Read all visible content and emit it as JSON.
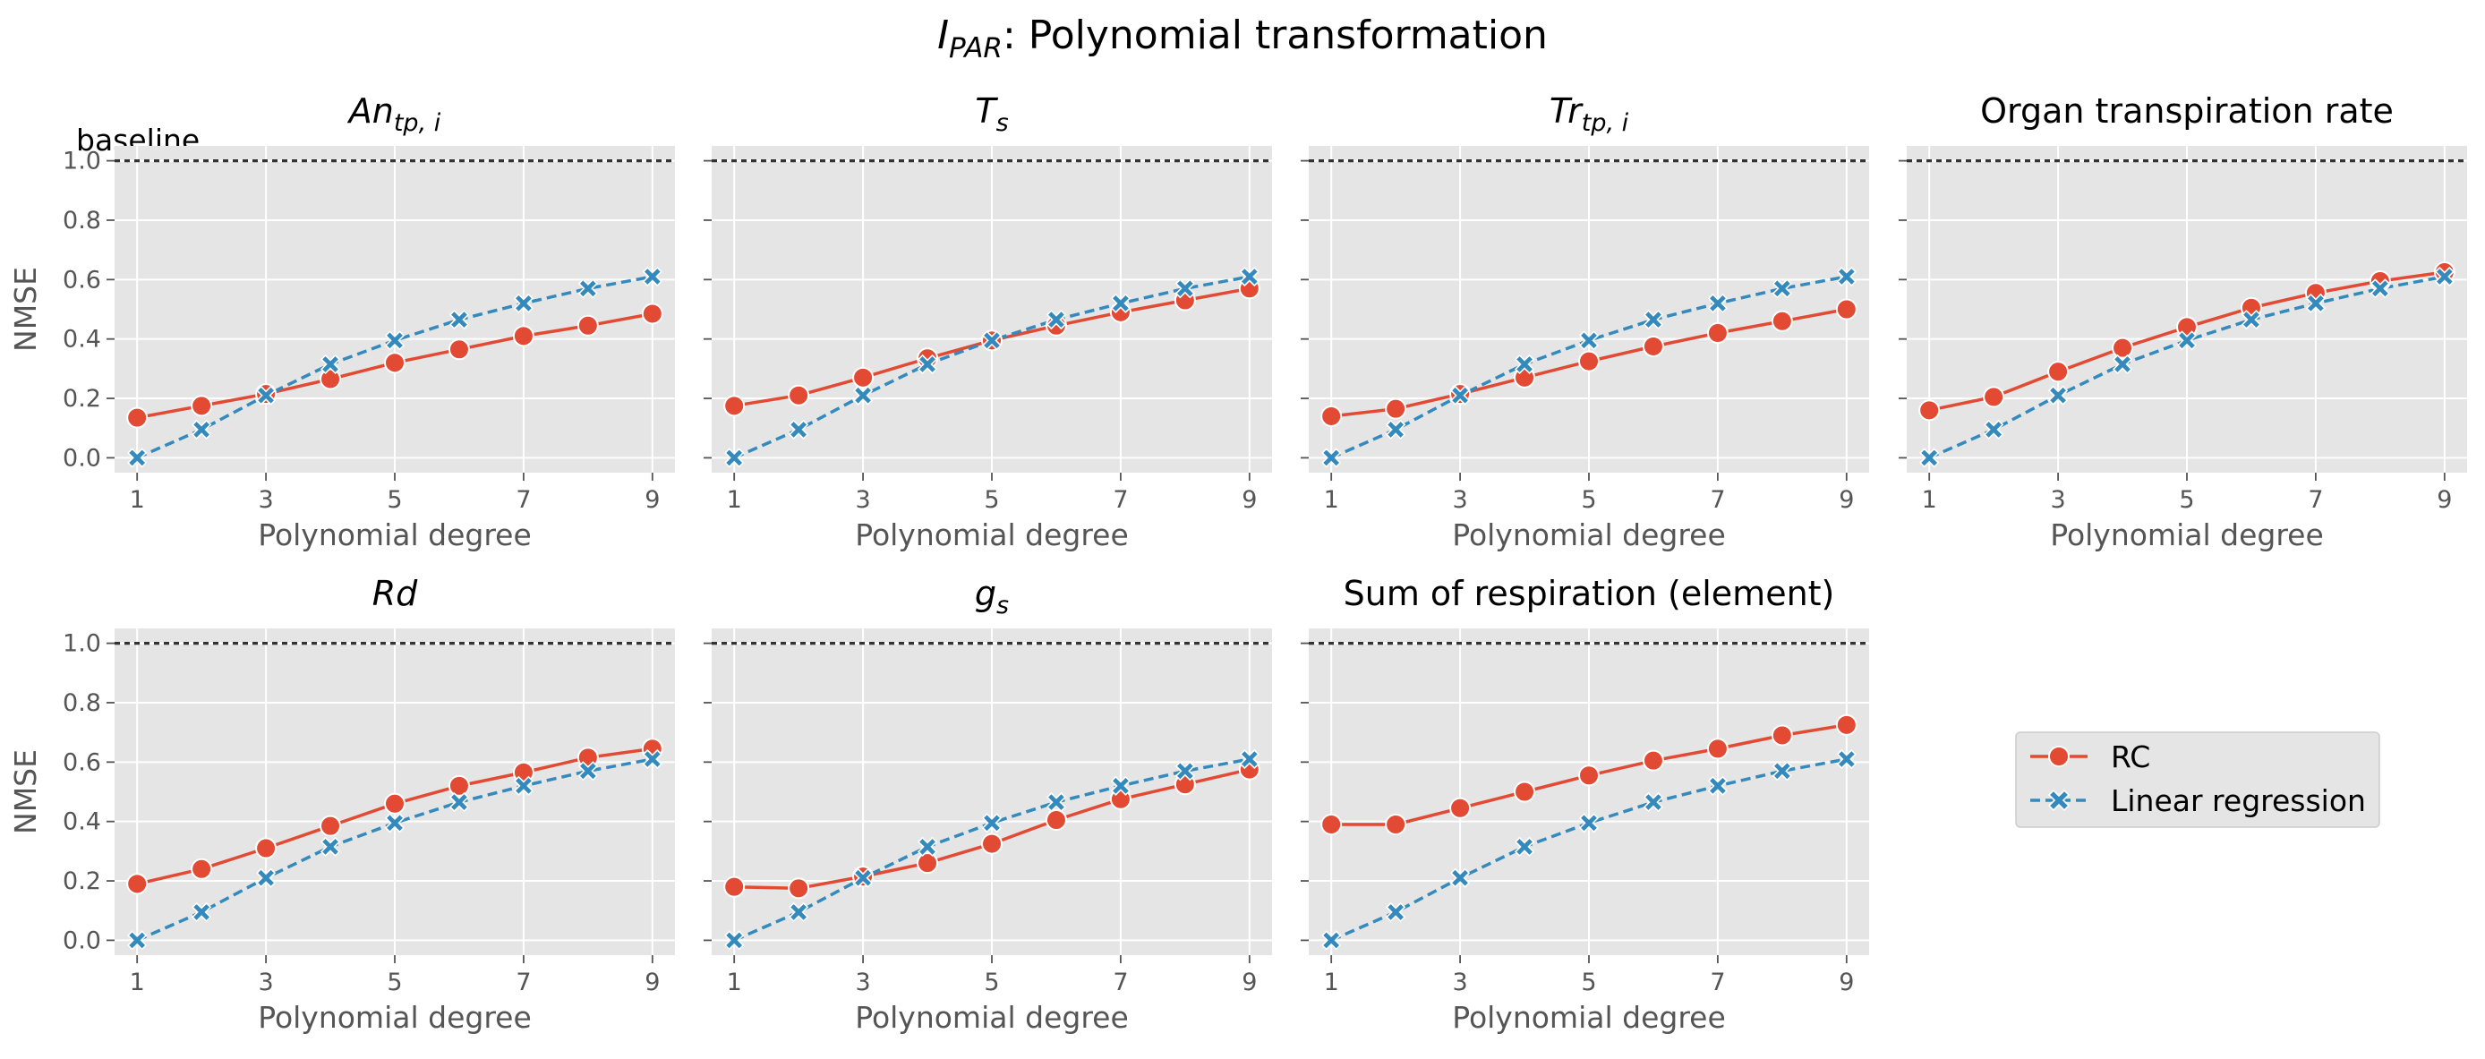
{
  "figure": {
    "title_main": "I",
    "title_sub": "PAR",
    "title_rest": ": Polynomial transformation",
    "baseline_label": "baseline"
  },
  "colors": {
    "rc": "#E24A33",
    "lr": "#348ABD",
    "axes_bg": "#E5E5E5",
    "grid": "#FFFFFF",
    "baseline": "#333333"
  },
  "legend": {
    "rc_label": "RC",
    "lr_label": "Linear regression",
    "placement": "right of bottom row"
  },
  "chart_data": [
    {
      "type": "line",
      "title": "An",
      "title_sub": "tp, i",
      "title_italic": true,
      "xlabel": "Polynomial degree",
      "ylabel": "NMSE",
      "x": [
        1,
        2,
        3,
        4,
        5,
        6,
        7,
        8,
        9
      ],
      "xticks": [
        1,
        3,
        5,
        7,
        9
      ],
      "yticks": [
        "0.0",
        "0.2",
        "0.4",
        "0.6",
        "0.8",
        "1.0"
      ],
      "ylim": [
        -0.05,
        1.05
      ],
      "baseline": 1.0,
      "grid": true,
      "series": [
        {
          "name": "RC",
          "values": [
            0.135,
            0.175,
            0.215,
            0.265,
            0.32,
            0.365,
            0.41,
            0.445,
            0.485
          ]
        },
        {
          "name": "Linear regression",
          "values": [
            0.0,
            0.095,
            0.21,
            0.315,
            0.395,
            0.465,
            0.52,
            0.57,
            0.61
          ]
        }
      ]
    },
    {
      "type": "line",
      "title": "T",
      "title_sub": "s",
      "title_italic": true,
      "xlabel": "Polynomial degree",
      "ylabel": "",
      "x": [
        1,
        2,
        3,
        4,
        5,
        6,
        7,
        8,
        9
      ],
      "xticks": [
        1,
        3,
        5,
        7,
        9
      ],
      "yticks": [
        "0.0",
        "0.2",
        "0.4",
        "0.6",
        "0.8",
        "1.0"
      ],
      "ylim": [
        -0.05,
        1.05
      ],
      "baseline": 1.0,
      "grid": true,
      "series": [
        {
          "name": "RC",
          "values": [
            0.175,
            0.21,
            0.27,
            0.335,
            0.395,
            0.445,
            0.49,
            0.53,
            0.57
          ]
        },
        {
          "name": "Linear regression",
          "values": [
            0.0,
            0.095,
            0.21,
            0.315,
            0.395,
            0.465,
            0.52,
            0.57,
            0.61
          ]
        }
      ]
    },
    {
      "type": "line",
      "title": "Tr",
      "title_sub": "tp, i",
      "title_italic": true,
      "xlabel": "Polynomial degree",
      "ylabel": "",
      "x": [
        1,
        2,
        3,
        4,
        5,
        6,
        7,
        8,
        9
      ],
      "xticks": [
        1,
        3,
        5,
        7,
        9
      ],
      "yticks": [
        "0.0",
        "0.2",
        "0.4",
        "0.6",
        "0.8",
        "1.0"
      ],
      "ylim": [
        -0.05,
        1.05
      ],
      "baseline": 1.0,
      "grid": true,
      "series": [
        {
          "name": "RC",
          "values": [
            0.14,
            0.165,
            0.215,
            0.27,
            0.325,
            0.375,
            0.42,
            0.46,
            0.5
          ]
        },
        {
          "name": "Linear regression",
          "values": [
            0.0,
            0.095,
            0.21,
            0.315,
            0.395,
            0.465,
            0.52,
            0.57,
            0.61
          ]
        }
      ]
    },
    {
      "type": "line",
      "title": "Organ transpiration rate",
      "title_sub": "",
      "title_italic": false,
      "xlabel": "Polynomial degree",
      "ylabel": "",
      "x": [
        1,
        2,
        3,
        4,
        5,
        6,
        7,
        8,
        9
      ],
      "xticks": [
        1,
        3,
        5,
        7,
        9
      ],
      "yticks": [
        "0.0",
        "0.2",
        "0.4",
        "0.6",
        "0.8",
        "1.0"
      ],
      "ylim": [
        -0.05,
        1.05
      ],
      "baseline": 1.0,
      "grid": true,
      "series": [
        {
          "name": "RC",
          "values": [
            0.16,
            0.205,
            0.29,
            0.37,
            0.44,
            0.505,
            0.555,
            0.595,
            0.625
          ]
        },
        {
          "name": "Linear regression",
          "values": [
            0.0,
            0.095,
            0.21,
            0.315,
            0.395,
            0.465,
            0.52,
            0.57,
            0.61
          ]
        }
      ]
    },
    {
      "type": "line",
      "title": "Rd",
      "title_sub": "",
      "title_italic": true,
      "xlabel": "Polynomial degree",
      "ylabel": "NMSE",
      "x": [
        1,
        2,
        3,
        4,
        5,
        6,
        7,
        8,
        9
      ],
      "xticks": [
        1,
        3,
        5,
        7,
        9
      ],
      "yticks": [
        "0.0",
        "0.2",
        "0.4",
        "0.6",
        "0.8",
        "1.0"
      ],
      "ylim": [
        -0.05,
        1.05
      ],
      "baseline": 1.0,
      "grid": true,
      "series": [
        {
          "name": "RC",
          "values": [
            0.19,
            0.24,
            0.31,
            0.385,
            0.46,
            0.52,
            0.565,
            0.615,
            0.645
          ]
        },
        {
          "name": "Linear regression",
          "values": [
            0.0,
            0.095,
            0.21,
            0.315,
            0.395,
            0.465,
            0.52,
            0.57,
            0.61
          ]
        }
      ]
    },
    {
      "type": "line",
      "title": "g",
      "title_sub": "s",
      "title_italic": true,
      "xlabel": "Polynomial degree",
      "ylabel": "",
      "x": [
        1,
        2,
        3,
        4,
        5,
        6,
        7,
        8,
        9
      ],
      "xticks": [
        1,
        3,
        5,
        7,
        9
      ],
      "yticks": [
        "0.0",
        "0.2",
        "0.4",
        "0.6",
        "0.8",
        "1.0"
      ],
      "ylim": [
        -0.05,
        1.05
      ],
      "baseline": 1.0,
      "grid": true,
      "series": [
        {
          "name": "RC",
          "values": [
            0.18,
            0.175,
            0.215,
            0.26,
            0.325,
            0.405,
            0.475,
            0.525,
            0.575
          ]
        },
        {
          "name": "Linear regression",
          "values": [
            0.0,
            0.095,
            0.21,
            0.315,
            0.395,
            0.465,
            0.52,
            0.57,
            0.61
          ]
        }
      ]
    },
    {
      "type": "line",
      "title": "Sum of respiration (element)",
      "title_sub": "",
      "title_italic": false,
      "xlabel": "Polynomial degree",
      "ylabel": "",
      "x": [
        1,
        2,
        3,
        4,
        5,
        6,
        7,
        8,
        9
      ],
      "xticks": [
        1,
        3,
        5,
        7,
        9
      ],
      "yticks": [
        "0.0",
        "0.2",
        "0.4",
        "0.6",
        "0.8",
        "1.0"
      ],
      "ylim": [
        -0.05,
        1.05
      ],
      "baseline": 1.0,
      "grid": true,
      "series": [
        {
          "name": "RC",
          "values": [
            0.39,
            0.39,
            0.445,
            0.5,
            0.555,
            0.605,
            0.645,
            0.69,
            0.725
          ]
        },
        {
          "name": "Linear regression",
          "values": [
            0.0,
            0.095,
            0.21,
            0.315,
            0.395,
            0.465,
            0.52,
            0.57,
            0.61
          ]
        }
      ]
    }
  ]
}
